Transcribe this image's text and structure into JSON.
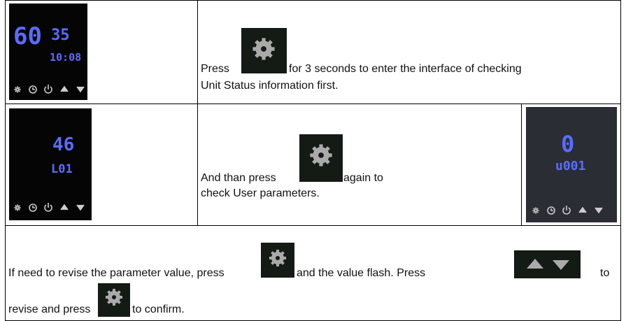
{
  "rows": [
    {
      "display": [
        "60",
        "35",
        "10:08"
      ],
      "text": [
        "Press",
        "for 3 seconds to enter the interface of checking",
        "Unit Status information first."
      ]
    },
    {
      "display": [
        "46",
        "L01"
      ],
      "text": [
        "And than press",
        "again to",
        "check User parameters."
      ],
      "display2": [
        "0",
        "u001"
      ]
    },
    {
      "text": [
        "If need to revise  the parameter value, press",
        "and the value flash. Press",
        "to",
        "revise and press",
        "to confirm."
      ]
    }
  ]
}
